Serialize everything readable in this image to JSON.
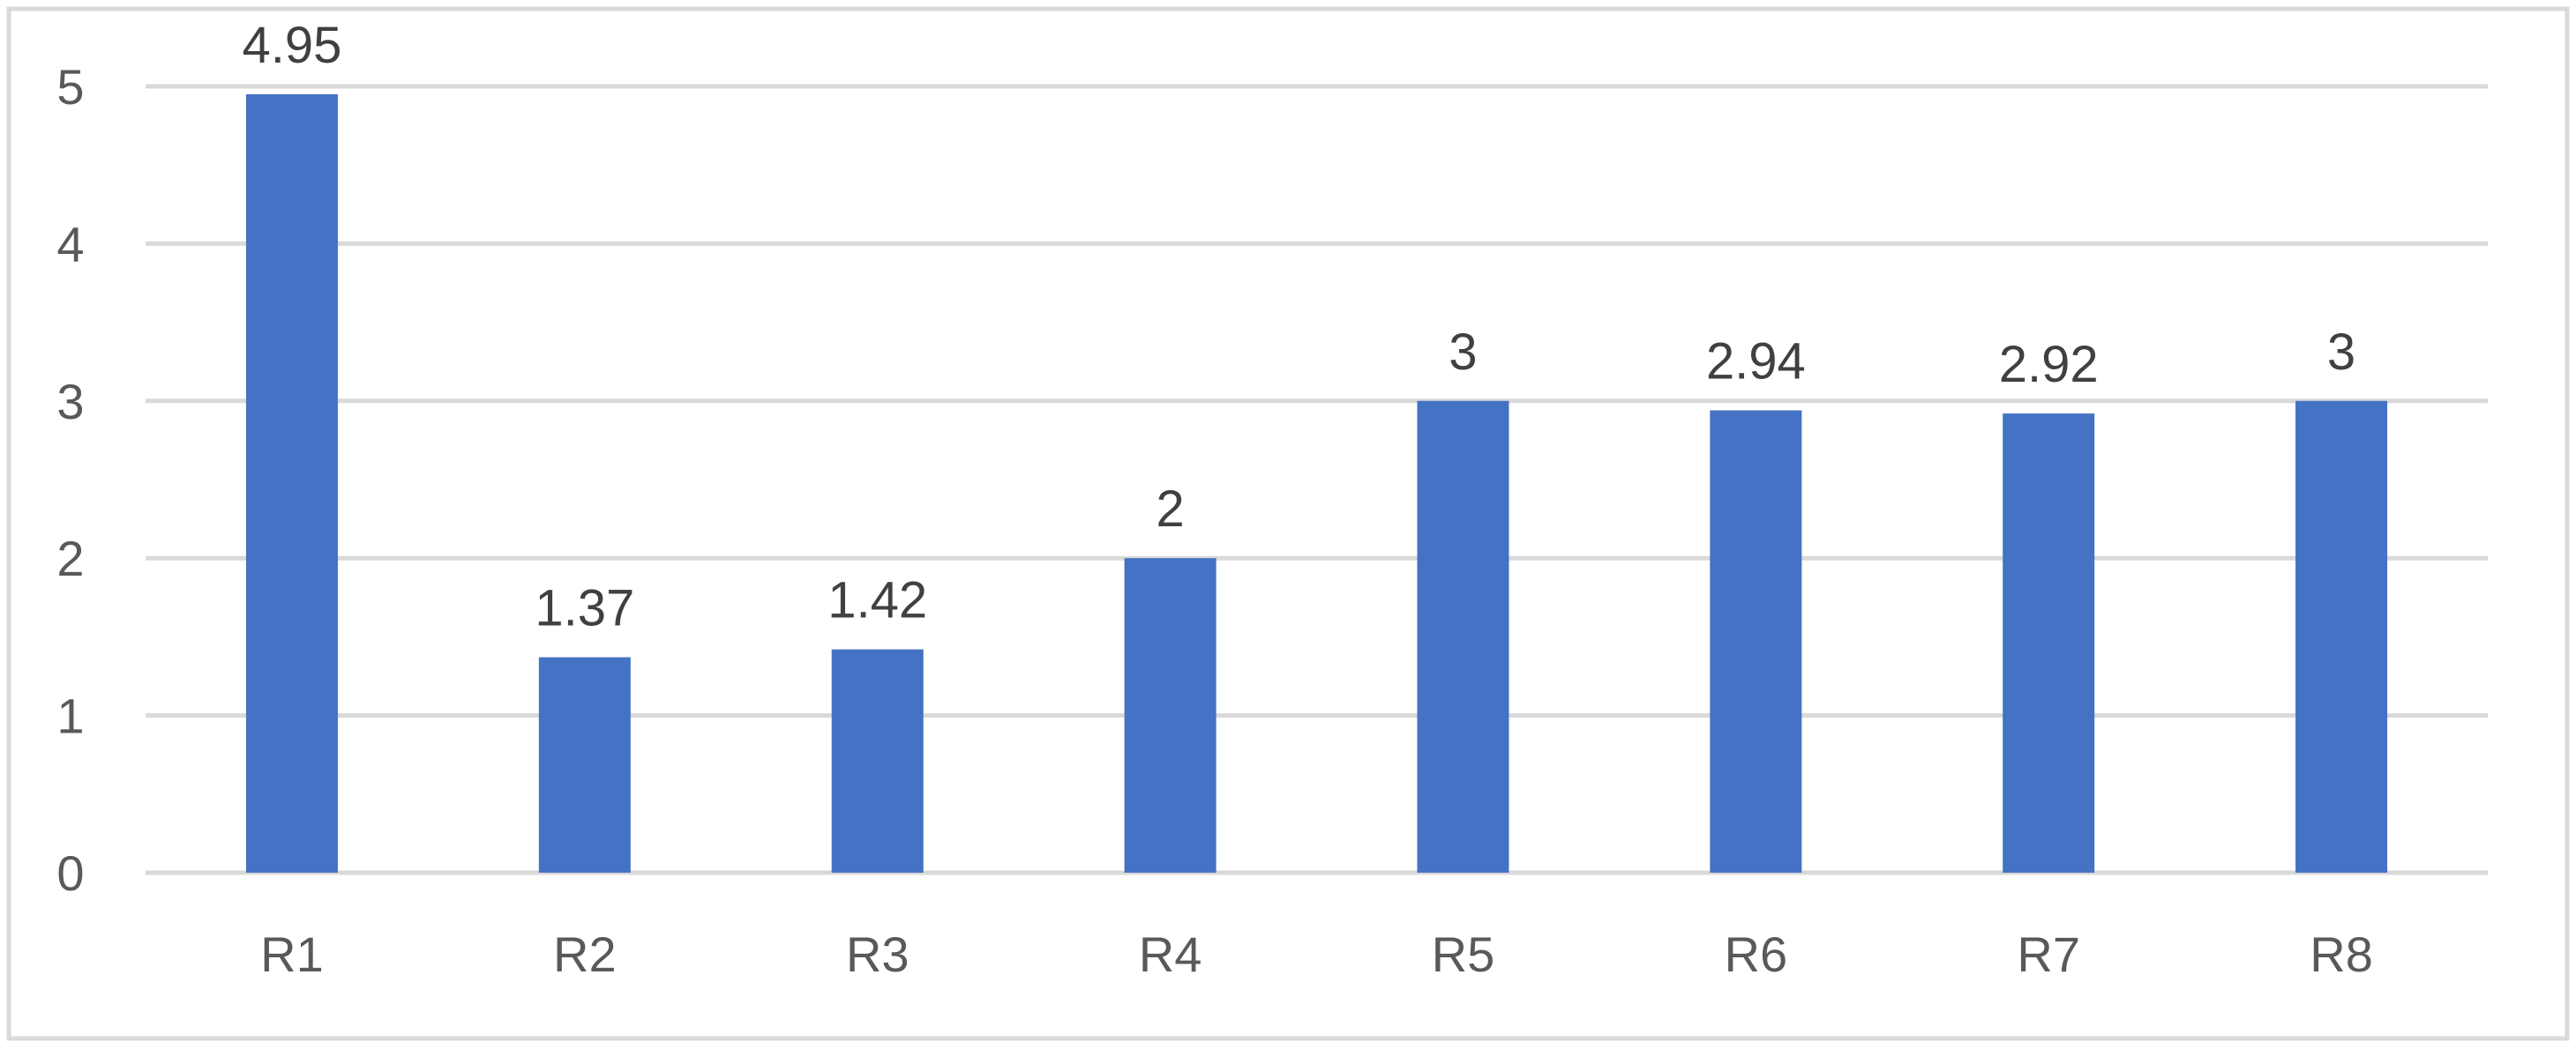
{
  "chart_data": {
    "type": "bar",
    "title": "",
    "xlabel": "",
    "ylabel": "",
    "categories": [
      "R1",
      "R2",
      "R3",
      "R4",
      "R5",
      "R6",
      "R7",
      "R8"
    ],
    "values": [
      4.95,
      1.37,
      1.42,
      2,
      3,
      2.94,
      2.92,
      3
    ],
    "data_labels": [
      "4.95",
      "1.37",
      "1.42",
      "2",
      "3",
      "2.94",
      "2.92",
      "3"
    ],
    "ylim": [
      0,
      5
    ],
    "yticks": [
      0,
      1,
      2,
      3,
      4,
      5
    ],
    "ytick_labels": [
      "0",
      "1",
      "2",
      "3",
      "4",
      "5"
    ],
    "grid": true,
    "legend": "none",
    "colors": {
      "bar": "#4472C4",
      "grid": "#D9D9D9",
      "frame": "#D9D9D9",
      "tick_text": "#595959",
      "label_text": "#404040"
    }
  }
}
